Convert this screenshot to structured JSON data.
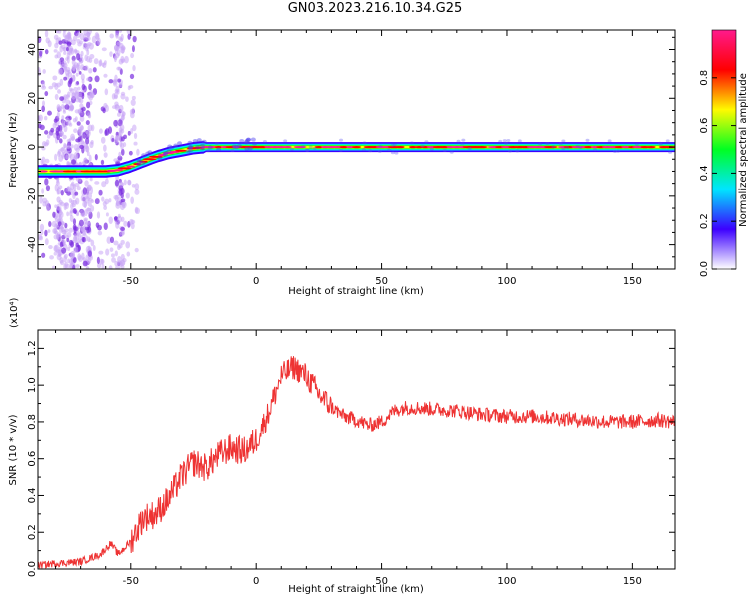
{
  "title": "GN03.2023.216.10.34.G25",
  "chart_data": [
    {
      "type": "heatmap",
      "xlabel": "Height of straight line (km)",
      "ylabel": "Frequency (Hz)",
      "xlim": [
        -87,
        167
      ],
      "ylim": [
        -50,
        48
      ],
      "xticks": [
        -50,
        0,
        50,
        100,
        150
      ],
      "yticks": [
        -40,
        -20,
        0,
        20,
        40
      ],
      "series": [
        {
          "x": [
            -87,
            -80,
            -70,
            -60,
            -55,
            -50,
            -45,
            -40,
            -35,
            -30,
            -25,
            -20,
            -10,
            0,
            20,
            50,
            100,
            150,
            167
          ],
          "values": [
            -10,
            -10,
            -10,
            -10,
            -9.5,
            -8,
            -6,
            -4,
            -2.5,
            -1.5,
            -0.5,
            0,
            0,
            0,
            0,
            0,
            0,
            0,
            0
          ]
        }
      ],
      "colorbar": {
        "label": "Normalized spectral amplitude",
        "range": [
          0.0,
          1.0
        ],
        "ticks": [
          0.0,
          0.2,
          0.4,
          0.6,
          0.8
        ],
        "colors": [
          "#ffffff",
          "#3c00ff",
          "#00e5ff",
          "#00ff22",
          "#fffa00",
          "#ff0000",
          "#ff1a8c"
        ]
      }
    },
    {
      "type": "line",
      "xlabel": "Height of straight line (km)",
      "ylabel": "SNR (10 * v/v)",
      "yscale_note": "(x10⁴)",
      "xlim": [
        -87,
        167
      ],
      "ylim": [
        0.0,
        1.3
      ],
      "xticks": [
        -50,
        0,
        50,
        100,
        150
      ],
      "yticks": [
        0.0,
        0.2,
        0.4,
        0.6,
        0.8,
        1.0,
        1.2
      ],
      "color": "#ee3333",
      "series": [
        {
          "x": [
            -87,
            -80,
            -70,
            -62,
            -58,
            -55,
            -50,
            -45,
            -40,
            -35,
            -30,
            -25,
            -20,
            -15,
            -10,
            -5,
            0,
            5,
            10,
            15,
            20,
            25,
            30,
            35,
            40,
            45,
            50,
            55,
            60,
            70,
            80,
            90,
            100,
            110,
            120,
            130,
            140,
            150,
            160,
            167
          ],
          "values": [
            0.02,
            0.03,
            0.04,
            0.08,
            0.14,
            0.08,
            0.15,
            0.28,
            0.3,
            0.38,
            0.5,
            0.58,
            0.55,
            0.62,
            0.66,
            0.64,
            0.7,
            0.85,
            1.05,
            1.1,
            1.05,
            0.95,
            0.88,
            0.83,
            0.81,
            0.78,
            0.8,
            0.86,
            0.88,
            0.87,
            0.86,
            0.84,
            0.83,
            0.83,
            0.82,
            0.81,
            0.8,
            0.8,
            0.81,
            0.8
          ]
        }
      ]
    }
  ]
}
